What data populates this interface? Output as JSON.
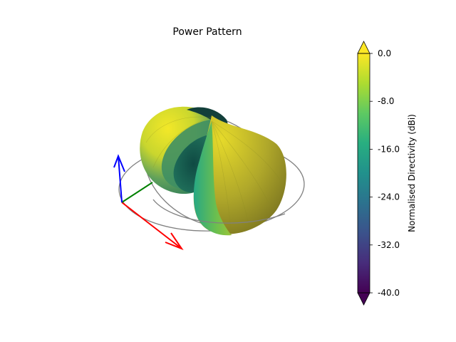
{
  "chart_data": {
    "type": "3d-surface",
    "title": "Power Pattern",
    "colorbar": {
      "label": "Normalised Directivity (dBi)",
      "range": [
        -40.0,
        0.0
      ],
      "ticks": [
        "0.0",
        "-8.0",
        "-16.0",
        "-24.0",
        "-32.0",
        "-40.0"
      ],
      "tick_values": [
        0,
        -8,
        -16,
        -24,
        -32,
        -40
      ],
      "colormap": "viridis",
      "extend": "both"
    },
    "axes_arrows": [
      {
        "name": "x",
        "color": "#ff0000"
      },
      {
        "name": "y",
        "color": "#008000"
      },
      {
        "name": "z",
        "color": "#0000ff"
      }
    ],
    "grid": false,
    "surface": "two-lobe radiation pattern with gray reference rings"
  }
}
